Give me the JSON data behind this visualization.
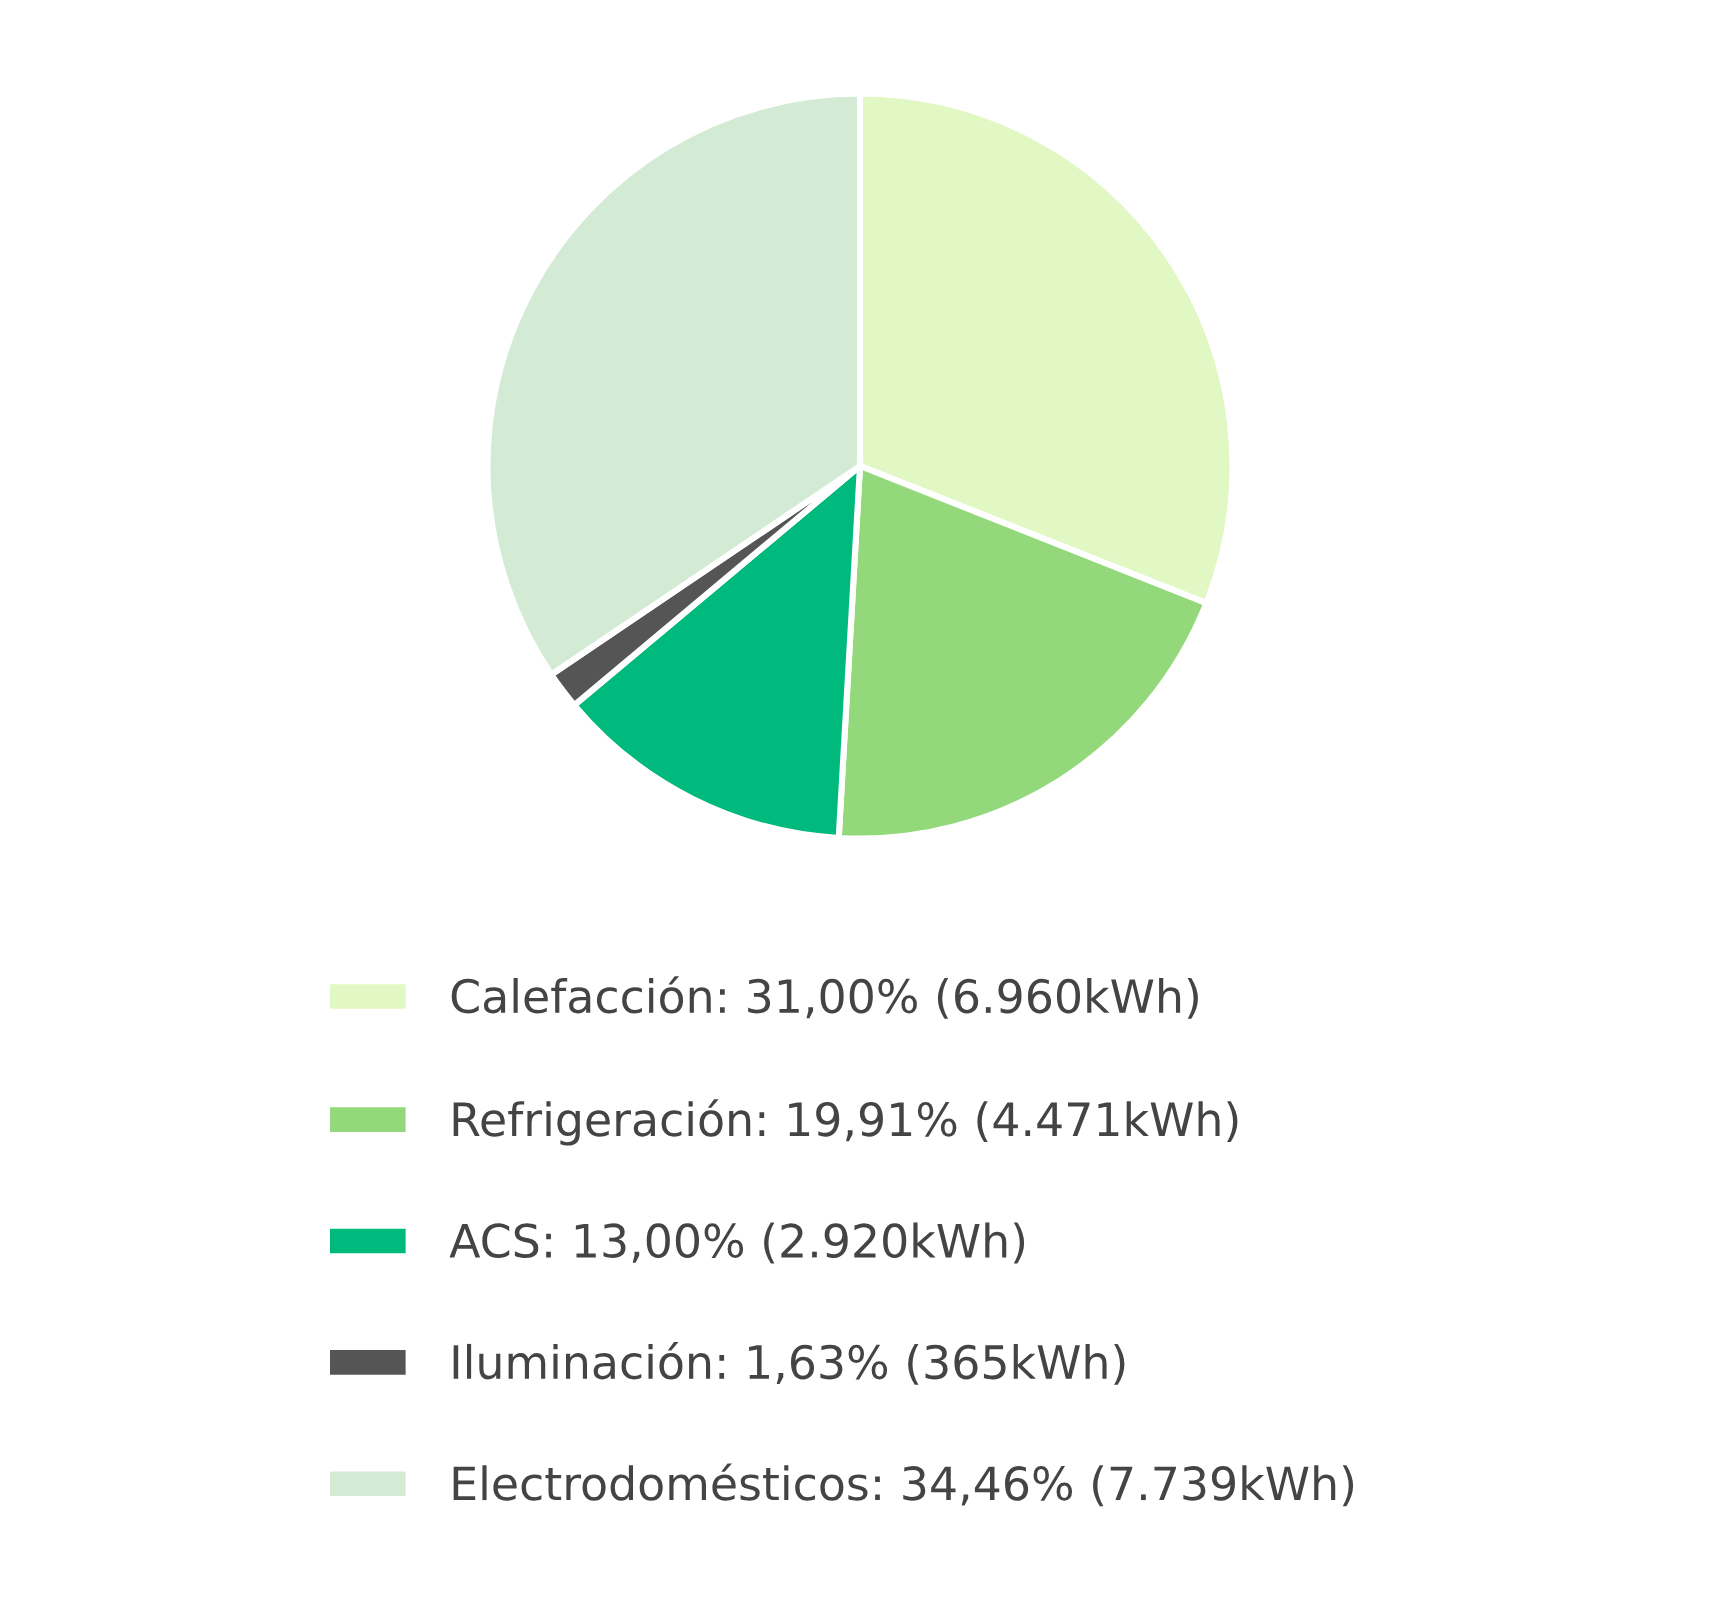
{
  "chart_data": {
    "type": "pie",
    "categories": [
      "Calefacción",
      "Refrigeración",
      "ACS",
      "Iluminación",
      "Electrodomésticos"
    ],
    "values": [
      31.0,
      19.91,
      13.0,
      1.63,
      34.46
    ],
    "value_labels": [
      "31,00% (6.960kWh)",
      "19,91% (4.471kWh)",
      "13,00% (2.920kWh)",
      "1,63% (365kWh)",
      "34,46% (7.739kWh)"
    ],
    "colors": [
      "#e2f8c4",
      "#93d97b",
      "#00b97c",
      "#555555",
      "#d3ebd4"
    ],
    "legend": "bottom"
  }
}
